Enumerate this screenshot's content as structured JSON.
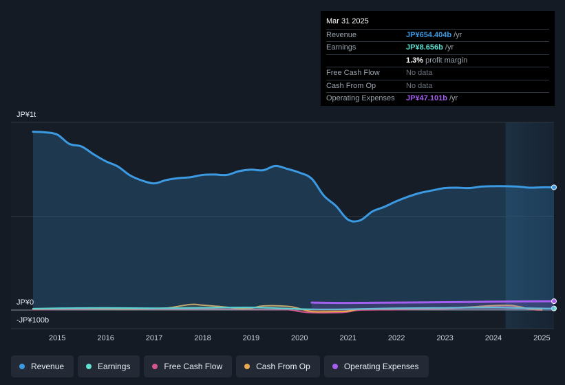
{
  "tooltip": {
    "date": "Mar 31 2025",
    "rows": [
      {
        "label": "Revenue",
        "value": "JP¥654.404b",
        "unit": "/yr",
        "color": "#3b9ae1"
      },
      {
        "label": "Earnings",
        "value": "JP¥8.656b",
        "unit": "/yr",
        "color": "#5fe0d0"
      },
      {
        "label": "",
        "value": "1.3%",
        "unit": "profit margin",
        "color": "#ffffff"
      },
      {
        "label": "Free Cash Flow",
        "value": "No data",
        "unit": "",
        "color": "#6b737d"
      },
      {
        "label": "Cash From Op",
        "value": "No data",
        "unit": "",
        "color": "#6b737d"
      },
      {
        "label": "Operating Expenses",
        "value": "JP¥47.101b",
        "unit": "/yr",
        "color": "#a55ff0"
      }
    ]
  },
  "legend": [
    {
      "label": "Revenue",
      "color": "#3b9ae1"
    },
    {
      "label": "Earnings",
      "color": "#5fe0d0"
    },
    {
      "label": "Free Cash Flow",
      "color": "#d4568f"
    },
    {
      "label": "Cash From Op",
      "color": "#e8a94f"
    },
    {
      "label": "Operating Expenses",
      "color": "#a55ff0"
    }
  ],
  "chart_data": {
    "type": "area",
    "y_unit_labels": {
      "top": "JP¥1t",
      "zero": "JP¥0",
      "bottom": "-JP¥100b"
    },
    "ylim": [
      -100,
      1000
    ],
    "xlim": [
      2014.5,
      2025.25
    ],
    "x_ticks": [
      "2015",
      "2016",
      "2017",
      "2018",
      "2019",
      "2020",
      "2021",
      "2022",
      "2023",
      "2024",
      "2025"
    ],
    "grid": true,
    "forecast_shading_from": 2024.25,
    "series": [
      {
        "name": "Revenue",
        "color": "#3b9ae1",
        "x": [
          2014.5,
          2014.75,
          2015.0,
          2015.25,
          2015.5,
          2015.75,
          2016.0,
          2016.25,
          2016.5,
          2016.75,
          2017.0,
          2017.25,
          2017.5,
          2017.75,
          2018.0,
          2018.25,
          2018.5,
          2018.75,
          2019.0,
          2019.25,
          2019.5,
          2019.75,
          2020.0,
          2020.25,
          2020.5,
          2020.75,
          2021.0,
          2021.25,
          2021.5,
          2021.75,
          2022.0,
          2022.25,
          2022.5,
          2022.75,
          2023.0,
          2023.25,
          2023.5,
          2023.75,
          2024.0,
          2024.25,
          2024.5,
          2024.75,
          2025.0,
          2025.25
        ],
        "values": [
          950,
          947,
          935,
          885,
          872,
          830,
          793,
          765,
          718,
          690,
          675,
          693,
          703,
          708,
          720,
          722,
          720,
          740,
          748,
          745,
          768,
          752,
          732,
          700,
          610,
          555,
          482,
          478,
          525,
          550,
          580,
          605,
          625,
          638,
          650,
          652,
          650,
          658,
          660,
          660,
          658,
          652,
          654,
          654
        ]
      },
      {
        "name": "Earnings",
        "color": "#5fe0d0",
        "x": [
          2014.5,
          2015.0,
          2016.0,
          2017.0,
          2018.0,
          2019.0,
          2020.0,
          2020.5,
          2021.0,
          2021.5,
          2022.0,
          2023.0,
          2024.0,
          2024.5,
          2025.0,
          2025.25
        ],
        "values": [
          8,
          10,
          12,
          10,
          12,
          14,
          6,
          4,
          5,
          8,
          10,
          12,
          14,
          11,
          9,
          8.656
        ]
      },
      {
        "name": "Free Cash Flow",
        "color": "#d4568f",
        "x": [
          2014.5,
          2015.0,
          2016.0,
          2017.0,
          2018.0,
          2019.0,
          2019.75,
          2020.0,
          2020.25,
          2020.75,
          2021.0,
          2021.25,
          2022.0,
          2023.0,
          2023.5,
          2024.0,
          2024.4,
          2024.75,
          2025.0
        ],
        "values": [
          2,
          3,
          5,
          4,
          6,
          3,
          2,
          -8,
          -14,
          -14,
          -10,
          0,
          2,
          6,
          14,
          22,
          22,
          4,
          0
        ]
      },
      {
        "name": "Cash From Op",
        "color": "#e8a94f",
        "x": [
          2014.5,
          2015.0,
          2015.5,
          2016.0,
          2016.5,
          2017.0,
          2017.3,
          2017.75,
          2018.0,
          2018.4,
          2018.75,
          2019.0,
          2019.25,
          2019.75,
          2020.0,
          2020.25,
          2020.75,
          2021.0,
          2021.25,
          2022.0,
          2023.0,
          2023.5,
          2024.0,
          2024.4,
          2024.75,
          2025.0
        ],
        "values": [
          5,
          8,
          9,
          8,
          7,
          9,
          12,
          30,
          26,
          18,
          8,
          10,
          22,
          20,
          8,
          -8,
          -8,
          -6,
          4,
          6,
          10,
          16,
          24,
          24,
          6,
          2
        ]
      },
      {
        "name": "Operating Expenses",
        "color": "#a55ff0",
        "x": [
          2020.25,
          2021.0,
          2022.0,
          2023.0,
          2024.0,
          2025.25
        ],
        "values": [
          40,
          38,
          40,
          42,
          45,
          47.101
        ]
      }
    ]
  }
}
